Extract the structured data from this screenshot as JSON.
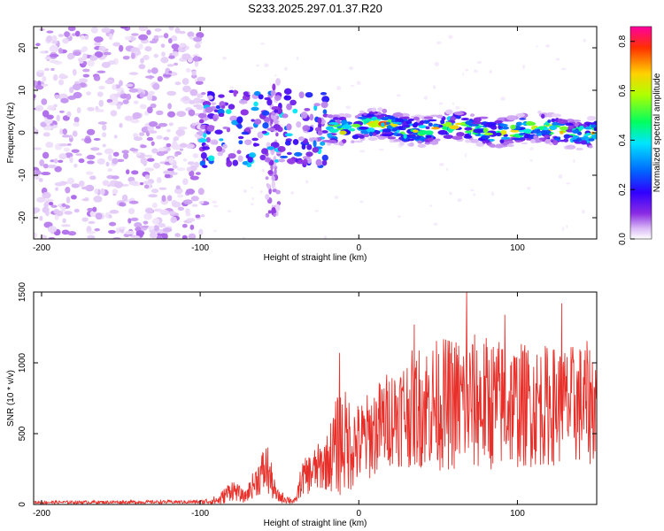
{
  "title": "S233.2025.297.01.37.R20",
  "colors": {
    "snr_line": "#e8302a",
    "speck": "#9a3cf0",
    "background": "#ffffff"
  },
  "chart_data": [
    {
      "type": "heatmap",
      "name": "spectrogram",
      "xlabel": "Height of straight line (km)",
      "ylabel": "Frequency (Hz)",
      "xlim": [
        -205,
        150
      ],
      "ylim": [
        -25,
        25
      ],
      "xticks": [
        -200,
        -100,
        0,
        100
      ],
      "yticks": [
        20,
        10,
        0,
        -10,
        -20
      ],
      "colorbar": {
        "label": "Normalized spectral amplitude",
        "range": [
          0.0,
          0.86
        ],
        "ticks": [
          0.0,
          0.2,
          0.4,
          0.6,
          0.8
        ],
        "colormap": [
          "#ffffff",
          "#d9b8f5",
          "#8a2be2",
          "#3000ff",
          "#0066ff",
          "#00e5ff",
          "#00ff60",
          "#b0ff00",
          "#ffd000",
          "#ff3000",
          "#ff00a0"
        ]
      },
      "regions": [
        {
          "label": "noise",
          "x_range": [
            -205,
            -97
          ],
          "y_range": [
            -25,
            25
          ],
          "amplitude": 0.08
        },
        {
          "label": "echo_onset",
          "x_range": [
            -100,
            -20
          ],
          "y_range": [
            -8,
            10
          ],
          "amplitude": 0.45
        },
        {
          "label": "vertical_streak",
          "x_range": [
            -58,
            -50
          ],
          "y_range": [
            -20,
            12
          ],
          "amplitude": 0.12
        },
        {
          "label": "main_echo",
          "x_range": [
            -20,
            150
          ],
          "y_range": [
            -2,
            3
          ],
          "amplitude": 0.85
        }
      ]
    },
    {
      "type": "line",
      "name": "snr",
      "xlabel": "Height of straight line (km)",
      "ylabel": "SNR (10 * v/v)",
      "xlim": [
        -205,
        150
      ],
      "ylim": [
        0,
        1500
      ],
      "xticks": [
        -200,
        -100,
        0,
        100
      ],
      "yticks": [
        0,
        500,
        1000,
        1500
      ],
      "series": [
        {
          "name": "SNR",
          "envelope": [
            {
              "x": -205,
              "base": 15,
              "amp": 10
            },
            {
              "x": -100,
              "base": 18,
              "amp": 12
            },
            {
              "x": -88,
              "base": 30,
              "amp": 40
            },
            {
              "x": -80,
              "base": 110,
              "amp": 80
            },
            {
              "x": -72,
              "base": 50,
              "amp": 40
            },
            {
              "x": -64,
              "base": 180,
              "amp": 120
            },
            {
              "x": -58,
              "base": 260,
              "amp": 200
            },
            {
              "x": -52,
              "base": 60,
              "amp": 50
            },
            {
              "x": -40,
              "base": 20,
              "amp": 20
            },
            {
              "x": -36,
              "base": 180,
              "amp": 120
            },
            {
              "x": -20,
              "base": 300,
              "amp": 200
            },
            {
              "x": -12,
              "base": 450,
              "amp": 400
            },
            {
              "x": 0,
              "base": 420,
              "amp": 300
            },
            {
              "x": 20,
              "base": 620,
              "amp": 350
            },
            {
              "x": 40,
              "base": 700,
              "amp": 450
            },
            {
              "x": 70,
              "base": 720,
              "amp": 500
            },
            {
              "x": 100,
              "base": 700,
              "amp": 450
            },
            {
              "x": 130,
              "base": 700,
              "amp": 420
            },
            {
              "x": 150,
              "base": 720,
              "amp": 450
            }
          ],
          "peaks": [
            {
              "x": -12,
              "y": 1070
            },
            {
              "x": 35,
              "y": 1270
            },
            {
              "x": 68,
              "y": 1500
            },
            {
              "x": 92,
              "y": 1340
            },
            {
              "x": 128,
              "y": 1420
            }
          ]
        }
      ]
    }
  ]
}
